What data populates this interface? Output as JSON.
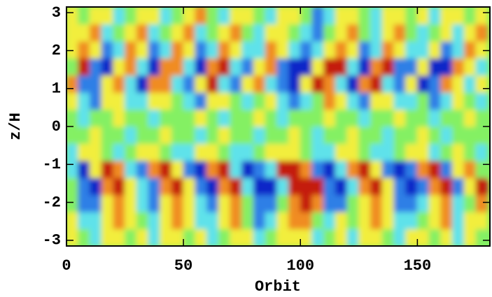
{
  "chart_data": {
    "type": "heatmap",
    "xlabel": "Orbit",
    "ylabel": "z/H",
    "xlim": [
      0,
      181
    ],
    "ylim": [
      -3.15,
      3.15
    ],
    "xticks": [
      0,
      50,
      100,
      150
    ],
    "yticks": [
      -3,
      -2,
      -1,
      0,
      1,
      2,
      3
    ],
    "zlim": [
      -3,
      3
    ],
    "colors": [
      "#1028c8",
      "#2f7fe6",
      "#5fe2ea",
      "#84f064",
      "#f2ee3c",
      "#f08c22",
      "#c41c10"
    ],
    "xbins": [
      0,
      5,
      10,
      15,
      20,
      25,
      30,
      35,
      40,
      45,
      50,
      55,
      60,
      65,
      70,
      75,
      80,
      85,
      90,
      95,
      100,
      105,
      110,
      115,
      120,
      125,
      130,
      135,
      140,
      145,
      150,
      155,
      160,
      165,
      170,
      175,
      180
    ],
    "ybins": [
      -3.15,
      -2.7,
      -2.25,
      -1.8,
      -1.35,
      -0.9,
      -0.45,
      0,
      0.45,
      0.9,
      1.35,
      1.8,
      2.25,
      2.7,
      3.15
    ],
    "z": [
      [
        1,
        0,
        -1,
        1,
        1,
        0,
        1,
        -1,
        1,
        1,
        0,
        1,
        -1,
        0,
        1,
        1,
        -1,
        0,
        1,
        1,
        1,
        -1,
        0,
        1,
        -1,
        1,
        1,
        0,
        -1,
        1,
        1,
        0,
        1,
        -1,
        1,
        0
      ],
      [
        1,
        -1,
        -1,
        1,
        2,
        1,
        0,
        -1,
        1,
        2,
        1,
        -1,
        -1,
        1,
        2,
        0,
        -2,
        -1,
        1,
        2,
        2,
        0,
        -1,
        1,
        0,
        1,
        2,
        1,
        -1,
        -1,
        0,
        1,
        2,
        -1,
        1,
        1
      ],
      [
        0,
        -2,
        -2,
        1,
        2,
        1,
        -1,
        -2,
        1,
        2,
        1,
        -1,
        -2,
        1,
        2,
        0,
        -2,
        -2,
        0,
        2,
        3,
        2,
        -2,
        -2,
        0,
        1,
        2,
        1,
        -2,
        -2,
        -1,
        1,
        2,
        -1,
        0,
        2
      ],
      [
        0,
        -2,
        -3,
        2,
        3,
        1,
        -1,
        -2,
        2,
        3,
        1,
        -2,
        -3,
        2,
        3,
        -1,
        -3,
        -3,
        -1,
        3,
        3,
        3,
        -2,
        -3,
        -1,
        2,
        3,
        1,
        -2,
        -3,
        -2,
        2,
        3,
        -2,
        1,
        3
      ],
      [
        -1,
        -3,
        1,
        3,
        2,
        -1,
        -2,
        2,
        3,
        1,
        -2,
        -3,
        2,
        3,
        -1,
        -3,
        -2,
        -1,
        3,
        3,
        2,
        -2,
        -3,
        -1,
        2,
        3,
        1,
        -2,
        -3,
        -2,
        2,
        3,
        -2,
        1,
        2,
        0
      ],
      [
        -1,
        1,
        1,
        0,
        -1,
        0,
        1,
        1,
        0,
        -1,
        -1,
        1,
        1,
        0,
        -1,
        -1,
        0,
        1,
        1,
        1,
        0,
        -1,
        -1,
        1,
        1,
        0,
        -1,
        -1,
        0,
        1,
        1,
        -1,
        0,
        1,
        0,
        -1
      ],
      [
        0,
        0,
        1,
        0,
        0,
        -1,
        0,
        0,
        1,
        0,
        0,
        -1,
        0,
        1,
        0,
        0,
        -1,
        0,
        0,
        1,
        0,
        -1,
        0,
        0,
        1,
        0,
        0,
        -1,
        0,
        0,
        1,
        0,
        -1,
        0,
        0,
        0
      ],
      [
        0,
        -1,
        0,
        0,
        1,
        0,
        0,
        -1,
        0,
        0,
        0,
        1,
        0,
        -1,
        0,
        0,
        1,
        0,
        -1,
        0,
        0,
        0,
        1,
        0,
        0,
        -1,
        0,
        0,
        1,
        0,
        0,
        -1,
        0,
        0,
        1,
        0
      ],
      [
        1,
        -1,
        -2,
        1,
        1,
        -1,
        -1,
        1,
        1,
        0,
        -1,
        -2,
        1,
        1,
        0,
        -1,
        0,
        1,
        -1,
        -2,
        -1,
        0,
        2,
        1,
        -1,
        -2,
        1,
        1,
        -1,
        -1,
        0,
        -2,
        -1,
        1,
        0,
        -1
      ],
      [
        2,
        -2,
        -2,
        1,
        2,
        -1,
        -3,
        2,
        2,
        -1,
        -2,
        1,
        3,
        -1,
        -2,
        1,
        2,
        -1,
        -2,
        -3,
        1,
        3,
        2,
        -1,
        -3,
        2,
        3,
        -1,
        -2,
        1,
        -3,
        -2,
        2,
        1,
        -1,
        1
      ],
      [
        0,
        3,
        -2,
        -3,
        1,
        2,
        -1,
        -3,
        2,
        2,
        -1,
        -3,
        2,
        3,
        -1,
        -2,
        1,
        2,
        -2,
        -3,
        -3,
        1,
        3,
        3,
        -1,
        -3,
        2,
        3,
        -2,
        -2,
        1,
        -3,
        -3,
        2,
        1,
        -1
      ],
      [
        1,
        2,
        1,
        -2,
        -1,
        2,
        1,
        -2,
        -1,
        2,
        1,
        -2,
        -1,
        2,
        1,
        -1,
        -1,
        2,
        1,
        -1,
        -2,
        -1,
        1,
        2,
        1,
        -2,
        -1,
        2,
        1,
        -1,
        -1,
        1,
        -2,
        -1,
        2,
        1
      ],
      [
        1,
        1,
        2,
        -1,
        0,
        1,
        2,
        -1,
        0,
        1,
        2,
        -1,
        0,
        1,
        2,
        0,
        -1,
        1,
        1,
        0,
        -1,
        -2,
        0,
        1,
        2,
        0,
        -1,
        1,
        2,
        0,
        -1,
        0,
        1,
        -1,
        1,
        2
      ],
      [
        1,
        0,
        1,
        1,
        -1,
        0,
        1,
        1,
        -1,
        0,
        1,
        2,
        0,
        -1,
        1,
        1,
        0,
        -1,
        1,
        1,
        0,
        -2,
        -1,
        1,
        1,
        0,
        -1,
        1,
        1,
        0,
        1,
        -1,
        1,
        1,
        0,
        1
      ]
    ]
  }
}
